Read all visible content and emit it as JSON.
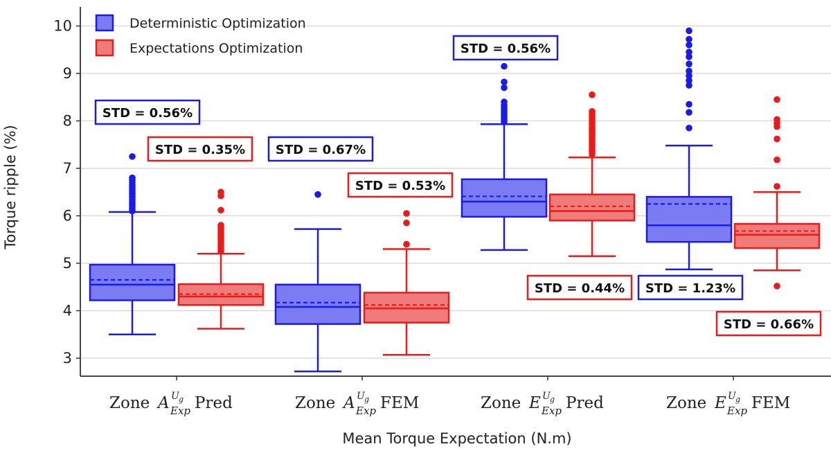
{
  "chart_data": {
    "type": "box",
    "ylabel": "Torque ripple (%)",
    "xlabel": "Mean Torque Expectation (N.m)",
    "ylim": [
      2.7,
      10.5
    ],
    "yticks": [
      3,
      4,
      5,
      6,
      7,
      8,
      9,
      10
    ],
    "grid": "horizontal",
    "legend_position": "top-left",
    "categories": [
      {
        "zone": "Zone ",
        "letter": "A",
        "sup": "U",
        "supsub": "g",
        "sub": "Exp",
        "suffix": " Pred"
      },
      {
        "zone": "Zone ",
        "letter": "A",
        "sup": "U",
        "supsub": "g",
        "sub": "Exp",
        "suffix": " FEM"
      },
      {
        "zone": "Zone ",
        "letter": "E",
        "sup": "U",
        "supsub": "g",
        "sub": "Exp",
        "suffix": " Pred"
      },
      {
        "zone": "Zone ",
        "letter": "E",
        "sup": "U",
        "supsub": "g",
        "sub": "Exp",
        "suffix": " FEM"
      }
    ],
    "series": [
      {
        "name": "Deterministic Optimization",
        "color": "#1a1aee",
        "fill": "#7b7bf2",
        "boxes": [
          {
            "whisker_low": 3.5,
            "q1": 4.22,
            "median": 4.55,
            "mean": 4.65,
            "q3": 4.97,
            "whisker_high": 6.08,
            "outliers": [
              6.1,
              6.15,
              6.2,
              6.25,
              6.3,
              6.35,
              6.4,
              6.45,
              6.5,
              6.55,
              6.6,
              6.65,
              6.7,
              6.75,
              6.8,
              7.25
            ],
            "std_label": "STD = 0.56%"
          },
          {
            "whisker_low": 2.72,
            "q1": 3.72,
            "median": 4.08,
            "mean": 4.17,
            "q3": 4.55,
            "whisker_high": 5.72,
            "outliers": [
              6.45
            ],
            "std_label": "STD = 0.67%"
          },
          {
            "whisker_low": 5.28,
            "q1": 5.98,
            "median": 6.3,
            "mean": 6.41,
            "q3": 6.77,
            "whisker_high": 7.93,
            "outliers": [
              7.98,
              8.03,
              8.08,
              8.13,
              8.18,
              8.23,
              8.28,
              8.33,
              8.4,
              8.7,
              8.82,
              9.15
            ],
            "std_label": "STD = 0.56%"
          },
          {
            "whisker_low": 4.87,
            "q1": 5.45,
            "median": 5.8,
            "mean": 6.25,
            "q3": 6.4,
            "whisker_high": 7.48,
            "outliers": [
              7.85,
              8.18,
              8.35,
              8.75,
              8.85,
              8.95,
              9.05,
              9.2,
              9.35,
              9.45,
              9.6,
              9.72,
              9.9
            ],
            "std_label": "STD = 1.23%"
          }
        ]
      },
      {
        "name": "Expectations Optimization",
        "color": "#ee1a1a",
        "fill": "#f07b7b",
        "boxes": [
          {
            "whisker_low": 3.62,
            "q1": 4.12,
            "median": 4.3,
            "mean": 4.35,
            "q3": 4.56,
            "whisker_high": 5.2,
            "outliers": [
              5.25,
              5.3,
              5.35,
              5.4,
              5.45,
              5.5,
              5.55,
              5.6,
              5.65,
              5.7,
              5.75,
              5.8,
              6.12,
              6.42,
              6.5
            ],
            "std_label": "STD = 0.35%"
          },
          {
            "whisker_low": 3.07,
            "q1": 3.75,
            "median": 4.05,
            "mean": 4.12,
            "q3": 4.38,
            "whisker_high": 5.3,
            "outliers": [
              5.4,
              5.85,
              6.05
            ],
            "std_label": "STD = 0.53%"
          },
          {
            "whisker_low": 5.15,
            "q1": 5.9,
            "median": 6.1,
            "mean": 6.2,
            "q3": 6.45,
            "whisker_high": 7.23,
            "outliers": [
              7.3,
              7.35,
              7.4,
              7.45,
              7.5,
              7.55,
              7.6,
              7.65,
              7.7,
              7.75,
              7.8,
              7.85,
              7.9,
              7.95,
              8.0,
              8.05,
              8.1,
              8.15,
              8.2,
              8.55
            ],
            "std_label": "STD = 0.44%"
          },
          {
            "whisker_low": 4.85,
            "q1": 5.32,
            "median": 5.6,
            "mean": 5.68,
            "q3": 5.83,
            "whisker_high": 6.5,
            "outliers": [
              4.52,
              6.62,
              7.18,
              7.62,
              7.88,
              7.95,
              8.03,
              8.45
            ],
            "std_label": "STD = 0.66%"
          }
        ]
      }
    ]
  }
}
